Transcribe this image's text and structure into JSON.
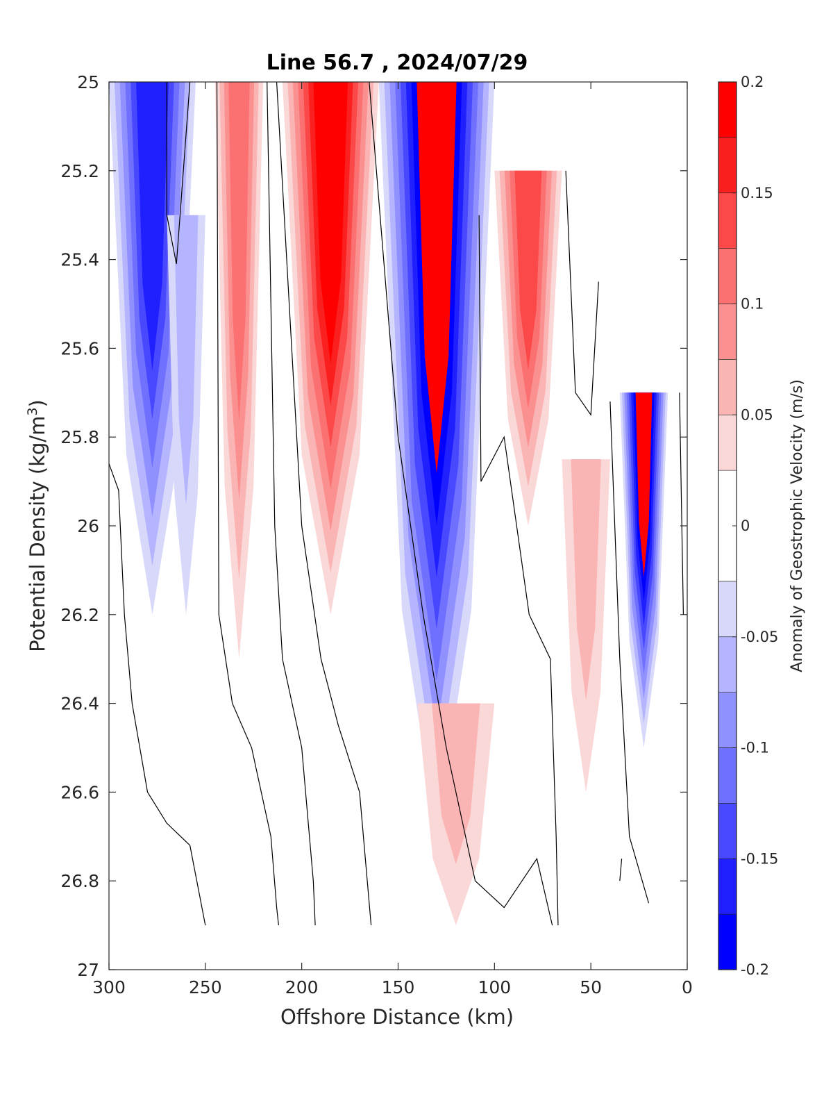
{
  "chart_data": {
    "type": "contour",
    "title": "Line 56.7 , 2024/07/29",
    "xlabel": "Offshore Distance (km)",
    "ylabel_main": "Potential Density (kg/m",
    "ylabel_sup": "3",
    "ylabel_close": ")",
    "xlim": [
      300,
      0
    ],
    "ylim": [
      25,
      27
    ],
    "y_reversed": true,
    "xticks": [
      300,
      250,
      200,
      150,
      100,
      50,
      0
    ],
    "xtick_labels": [
      "300",
      "250",
      "200",
      "150",
      "100",
      "50",
      "0"
    ],
    "yticks": [
      25,
      25.2,
      25.4,
      25.6,
      25.8,
      26,
      26.2,
      26.4,
      26.6,
      26.8,
      27
    ],
    "ytick_labels": [
      "25",
      "25.2",
      "25.4",
      "25.6",
      "25.8",
      "26",
      "26.2",
      "26.4",
      "26.6",
      "26.8",
      "27"
    ],
    "colorbar": {
      "label": "Anomaly of Geostrophic Velocity (m/s)",
      "range": [
        -0.2,
        0.2
      ],
      "levels": [
        -0.2,
        -0.175,
        -0.15,
        -0.125,
        -0.1,
        -0.075,
        -0.05,
        -0.025,
        0.025,
        0.05,
        0.075,
        0.1,
        0.125,
        0.15,
        0.175,
        0.2
      ],
      "colors": [
        "#0000ff",
        "#2020ff",
        "#4848ff",
        "#7070ff",
        "#9090ff",
        "#b4b4ff",
        "#d8d8fa",
        "#ffffff",
        "#fbd8d8",
        "#fbb4b4",
        "#fb9090",
        "#fb7070",
        "#fb4848",
        "#fb2020",
        "#ff0000"
      ],
      "ticks": [
        -0.2,
        -0.15,
        -0.1,
        -0.05,
        0,
        0.05,
        0.1,
        0.15,
        0.2
      ],
      "tick_labels": [
        "-0.2",
        "-0.15",
        "-0.1",
        "-0.05",
        "0",
        "0.05",
        "0.1",
        "0.15",
        "0.2"
      ]
    },
    "anomaly_features": [
      {
        "name": "offshore-negative-core",
        "x_range": [
          255,
          300
        ],
        "y_range": [
          25.0,
          26.2
        ],
        "value": -0.15
      },
      {
        "name": "negative-band-250km",
        "x_range": [
          250,
          270
        ],
        "y_range": [
          25.3,
          26.2
        ],
        "value": -0.05
      },
      {
        "name": "positive-band-230km",
        "x_range": [
          220,
          245
        ],
        "y_range": [
          25.0,
          26.3
        ],
        "value": 0.1
      },
      {
        "name": "positive-core-190km",
        "x_range": [
          160,
          210
        ],
        "y_range": [
          25.0,
          26.2
        ],
        "value": 0.175
      },
      {
        "name": "negative-core-130km",
        "x_range": [
          100,
          160
        ],
        "y_range": [
          25.0,
          26.7
        ],
        "value": -0.2
      },
      {
        "name": "positive-band-85km",
        "x_range": [
          65,
          100
        ],
        "y_range": [
          25.2,
          26.0
        ],
        "value": 0.125
      },
      {
        "name": "nearshore-negative-core",
        "x_range": [
          10,
          35
        ],
        "y_range": [
          25.7,
          26.5
        ],
        "value": -0.2
      },
      {
        "name": "deep-positive-40km",
        "x_range": [
          40,
          65
        ],
        "y_range": [
          25.85,
          26.6
        ],
        "value": 0.05
      },
      {
        "name": "deep-positive-130km",
        "x_range": [
          100,
          140
        ],
        "y_range": [
          26.4,
          26.9
        ],
        "value": 0.05
      }
    ]
  }
}
